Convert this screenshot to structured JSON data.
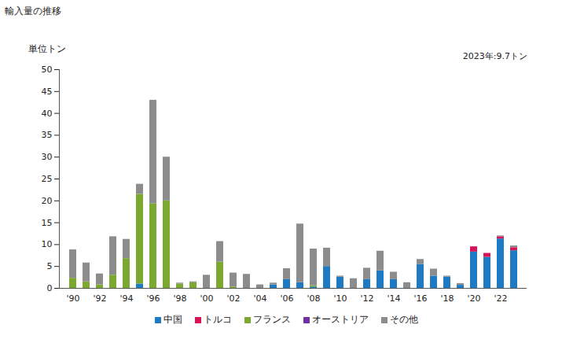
{
  "chart_data": {
    "type": "bar",
    "title": "輸入量の推移",
    "y_label": "単位トン",
    "annotations": [
      "2023年:9.7トン"
    ],
    "stacked": true,
    "legend": "bottom",
    "grid": false,
    "categories": [
      "'90",
      null,
      "'92",
      null,
      "'94",
      null,
      "'96",
      null,
      "'98",
      null,
      "'00",
      null,
      "'02",
      null,
      "'04",
      null,
      "'06",
      null,
      "'08",
      null,
      "'10",
      null,
      "'12",
      null,
      "'14",
      null,
      "'16",
      null,
      "'18",
      null,
      "'20",
      null,
      "'22",
      null
    ],
    "ylim": [
      0,
      50
    ],
    "yticks": [
      0,
      5,
      10,
      15,
      20,
      25,
      30,
      35,
      40,
      45,
      50
    ],
    "series": [
      {
        "name": "中国",
        "color": "#1f7ac4",
        "values": [
          0,
          0,
          0,
          0,
          0,
          1,
          0,
          0,
          0,
          0,
          0,
          0,
          0,
          0,
          0,
          0.8,
          2,
          1.3,
          0.3,
          5,
          2.6,
          0,
          2,
          4,
          2,
          0,
          5.5,
          2.8,
          2.6,
          0.7,
          8.3,
          7.1,
          11.3,
          8.6
        ]
      },
      {
        "name": "トルコ",
        "color": "#d6145a",
        "values": [
          0,
          0,
          0,
          0,
          0,
          0,
          0,
          0,
          0,
          0,
          0,
          0,
          0,
          0,
          0,
          0,
          0,
          0,
          0,
          0,
          0,
          0,
          0,
          0,
          0,
          0,
          0,
          0,
          0,
          0,
          1.2,
          0.9,
          0.5,
          0.7
        ]
      },
      {
        "name": "フランス",
        "color": "#7ba82e",
        "values": [
          2.3,
          1.5,
          0.8,
          3,
          6.8,
          20.5,
          19.3,
          20,
          1,
          1.3,
          0,
          6,
          0.3,
          0,
          0,
          0,
          0,
          0,
          0.3,
          0,
          0,
          0,
          0,
          0,
          0,
          0,
          0,
          0,
          0,
          0,
          0,
          0,
          0,
          0
        ]
      },
      {
        "name": "オーストリア",
        "color": "#7030a0",
        "values": [
          0,
          0,
          0,
          0,
          0,
          0,
          0,
          0,
          0,
          0,
          0,
          0,
          0,
          0,
          0,
          0,
          0,
          0,
          0,
          0,
          0,
          0,
          0,
          0,
          0,
          0,
          0,
          0,
          0,
          0,
          0,
          0,
          0,
          0
        ]
      },
      {
        "name": "その他",
        "color": "#8c8c8c",
        "values": [
          6.5,
          4.3,
          2.5,
          8.8,
          4.4,
          2.3,
          23.7,
          10,
          0.2,
          0.2,
          3,
          4.7,
          3.2,
          3.2,
          0.8,
          0.4,
          2.5,
          13.4,
          8.4,
          4.2,
          0.2,
          2.2,
          2.6,
          4.5,
          1.7,
          1.3,
          1.1,
          1.6,
          0.2,
          0.4,
          0,
          0,
          0.2,
          0.4
        ]
      }
    ]
  }
}
